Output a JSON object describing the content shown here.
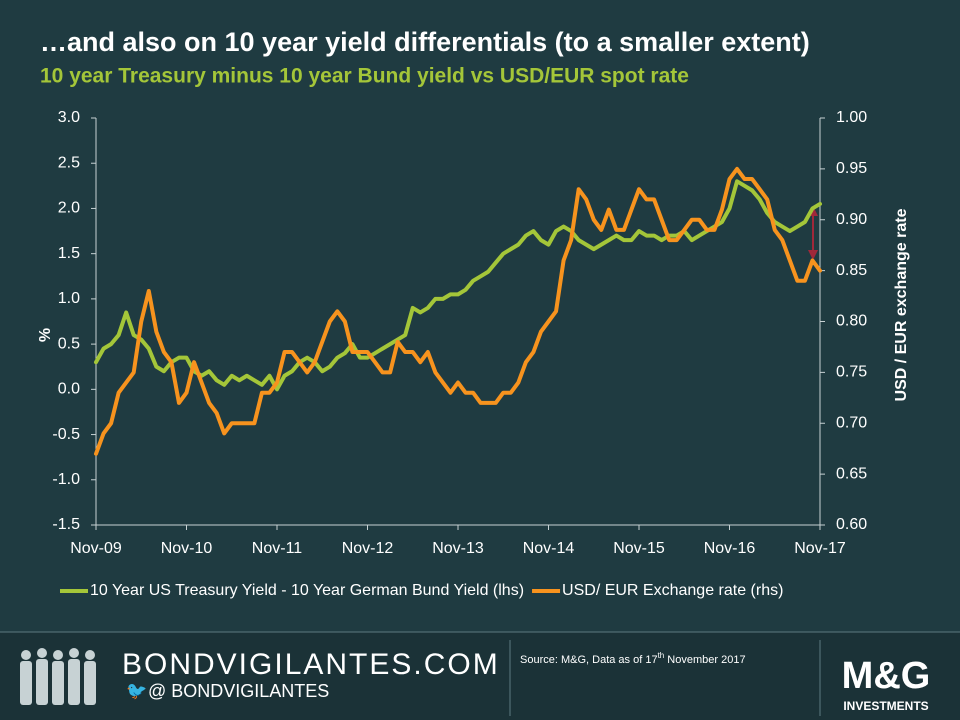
{
  "chart_data": {
    "type": "line",
    "title": "…and also on 10 year yield differentials (to a smaller extent)",
    "subtitle": "10 year Treasury minus 10 year Bund yield vs USD/EUR spot rate",
    "ylabel": "%",
    "y2label": "USD / EUR exchange rate",
    "categories": [
      "Nov-09",
      null,
      null,
      null,
      null,
      null,
      null,
      null,
      null,
      null,
      null,
      null,
      "Nov-10",
      null,
      null,
      null,
      null,
      null,
      null,
      null,
      null,
      null,
      null,
      null,
      "Nov-11",
      null,
      null,
      null,
      null,
      null,
      null,
      null,
      null,
      null,
      null,
      null,
      "Nov-12",
      null,
      null,
      null,
      null,
      null,
      null,
      null,
      null,
      null,
      null,
      null,
      "Nov-13",
      null,
      null,
      null,
      null,
      null,
      null,
      null,
      null,
      null,
      null,
      null,
      "Nov-14",
      null,
      null,
      null,
      null,
      null,
      null,
      null,
      null,
      null,
      null,
      null,
      "Nov-15",
      null,
      null,
      null,
      null,
      null,
      null,
      null,
      null,
      null,
      null,
      null,
      "Nov-16",
      null,
      null,
      null,
      null,
      null,
      null,
      null,
      null,
      null,
      null,
      null,
      "Nov-17"
    ],
    "series": [
      {
        "name": "10 Year US Treasury Yield - 10 Year German Bund Yield (lhs)",
        "color": "#a4c639",
        "axis": "y",
        "values": [
          0.3,
          0.45,
          0.5,
          0.6,
          0.85,
          0.6,
          0.55,
          0.45,
          0.25,
          0.2,
          0.3,
          0.35,
          0.35,
          0.2,
          0.15,
          0.2,
          0.1,
          0.05,
          0.15,
          0.1,
          0.15,
          0.1,
          0.05,
          0.15,
          0.0,
          0.15,
          0.2,
          0.3,
          0.35,
          0.3,
          0.2,
          0.25,
          0.35,
          0.4,
          0.5,
          0.35,
          0.35,
          0.4,
          0.45,
          0.5,
          0.55,
          0.6,
          0.9,
          0.85,
          0.9,
          1.0,
          1.0,
          1.05,
          1.05,
          1.1,
          1.2,
          1.25,
          1.3,
          1.4,
          1.5,
          1.55,
          1.6,
          1.7,
          1.75,
          1.65,
          1.6,
          1.75,
          1.8,
          1.75,
          1.65,
          1.6,
          1.55,
          1.6,
          1.65,
          1.7,
          1.65,
          1.65,
          1.75,
          1.7,
          1.7,
          1.65,
          1.7,
          1.7,
          1.75,
          1.65,
          1.7,
          1.75,
          1.8,
          1.85,
          2.0,
          2.3,
          2.25,
          2.2,
          2.1,
          1.95,
          1.85,
          1.8,
          1.75,
          1.8,
          1.85,
          2.0,
          2.05
        ]
      },
      {
        "name": "USD/ EUR Exchange rate (rhs)",
        "color": "#f7931e",
        "axis": "y2",
        "values": [
          0.67,
          0.69,
          0.7,
          0.73,
          0.74,
          0.75,
          0.8,
          0.83,
          0.79,
          0.77,
          0.76,
          0.72,
          0.73,
          0.76,
          0.74,
          0.72,
          0.71,
          0.69,
          0.7,
          0.7,
          0.7,
          0.7,
          0.73,
          0.73,
          0.74,
          0.77,
          0.77,
          0.76,
          0.75,
          0.76,
          0.78,
          0.8,
          0.81,
          0.8,
          0.77,
          0.77,
          0.77,
          0.76,
          0.75,
          0.75,
          0.78,
          0.77,
          0.77,
          0.76,
          0.77,
          0.75,
          0.74,
          0.73,
          0.74,
          0.73,
          0.73,
          0.72,
          0.72,
          0.72,
          0.73,
          0.73,
          0.74,
          0.76,
          0.77,
          0.79,
          0.8,
          0.81,
          0.86,
          0.88,
          0.93,
          0.92,
          0.9,
          0.89,
          0.91,
          0.89,
          0.89,
          0.91,
          0.93,
          0.92,
          0.92,
          0.9,
          0.88,
          0.88,
          0.89,
          0.9,
          0.9,
          0.89,
          0.89,
          0.91,
          0.94,
          0.95,
          0.94,
          0.94,
          0.93,
          0.92,
          0.89,
          0.88,
          0.86,
          0.84,
          0.84,
          0.86,
          0.85
        ]
      }
    ],
    "ylim": [
      -1.5,
      3
    ],
    "yticks": [
      -1.5,
      {
        "value": -1,
        "label": "-1.0"
      },
      -0.5,
      {
        "value": 0,
        "label": "0.0"
      },
      0.5,
      {
        "value": 1,
        "label": "1.0"
      },
      1.5,
      {
        "value": 2,
        "label": "2.0"
      },
      2.5,
      {
        "value": 3,
        "label": "3.0"
      }
    ],
    "y2lim": [
      0.6,
      1
    ],
    "y2ticks": [
      {
        "value": 0.6,
        "label": "0.60"
      },
      0.65,
      {
        "value": 0.7,
        "label": "0.70"
      },
      0.75,
      {
        "value": 0.8,
        "label": "0.80"
      },
      0.85,
      {
        "value": 0.9,
        "label": "0.90"
      },
      0.95,
      {
        "value": 1,
        "label": "1.00"
      }
    ],
    "grid": false,
    "legend": "bottom"
  },
  "footer": {
    "site": "BONDVIGILANTES.COM",
    "handle": "@ BONDVIGILANTES",
    "source_prefix": "Source: M&G,  Data as of 17",
    "source_sup": "th",
    "source_suffix": " November 2017",
    "logo": "M&G",
    "logo_sub": "INVESTMENTS"
  }
}
